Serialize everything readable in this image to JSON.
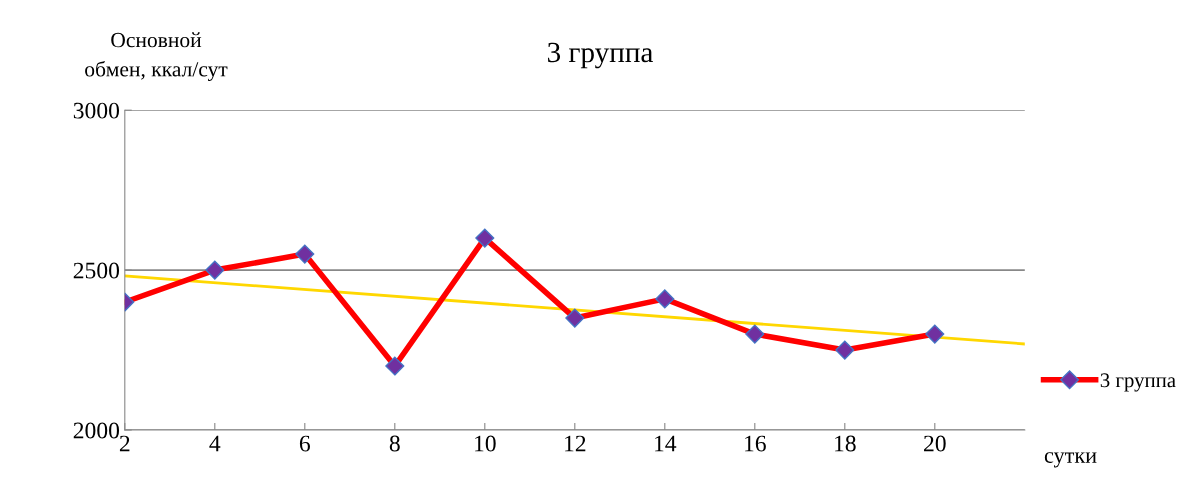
{
  "chart_data": {
    "type": "line",
    "title": "3 группа",
    "ylabel": "Основной\nобмен, ккал/сут",
    "xlabel": "сутки",
    "x": [
      2,
      4,
      6,
      8,
      10,
      12,
      14,
      16,
      18,
      20
    ],
    "series": [
      {
        "name": "3 группа",
        "color": "#ff0000",
        "marker": "diamond",
        "values": [
          2400,
          2500,
          2550,
          2200,
          2600,
          2350,
          2410,
          2300,
          2250,
          2300
        ]
      },
      {
        "color": "#ffd700",
        "x": [
          2,
          22
        ],
        "values": [
          2482,
          2269
        ],
        "marker": "none"
      }
    ],
    "xlim": [
      2,
      22
    ],
    "xticks": [
      2,
      4,
      6,
      8,
      10,
      12,
      14,
      16,
      18,
      20
    ],
    "ylim": [
      2000,
      3000
    ],
    "yticks": [
      2000,
      2500,
      3000
    ],
    "grid": "y",
    "legend": "right"
  }
}
